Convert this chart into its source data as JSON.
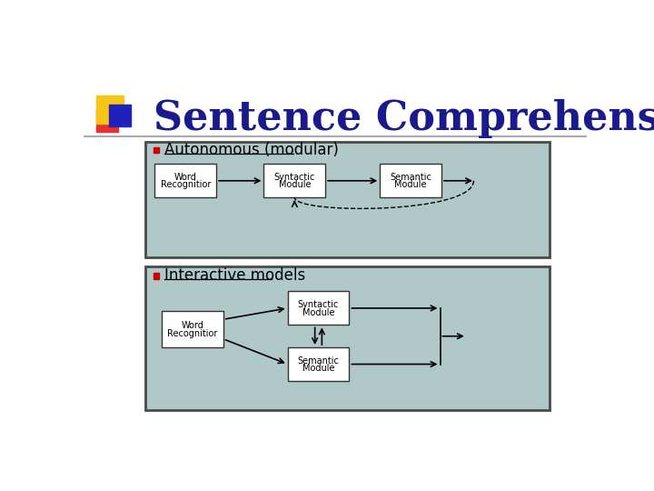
{
  "title": "Sentence Comprehension",
  "title_color": "#1a1a8c",
  "title_fontsize": 32,
  "bg_color": "#ffffff",
  "panel_bg": "#b0c8c8",
  "panel_border": "#4a4a4a",
  "box_bg": "#ffffff",
  "box_border": "#333333",
  "bullet_color": "#cc0000",
  "bullet1_text": "Autonomous (modular)",
  "bullet2_text": "Interactive models",
  "label_fontsize": 8,
  "bullet_fontsize": 12,
  "logo_yellow": "#f5c518",
  "logo_red": "#e83030",
  "logo_blue": "#2020bb"
}
